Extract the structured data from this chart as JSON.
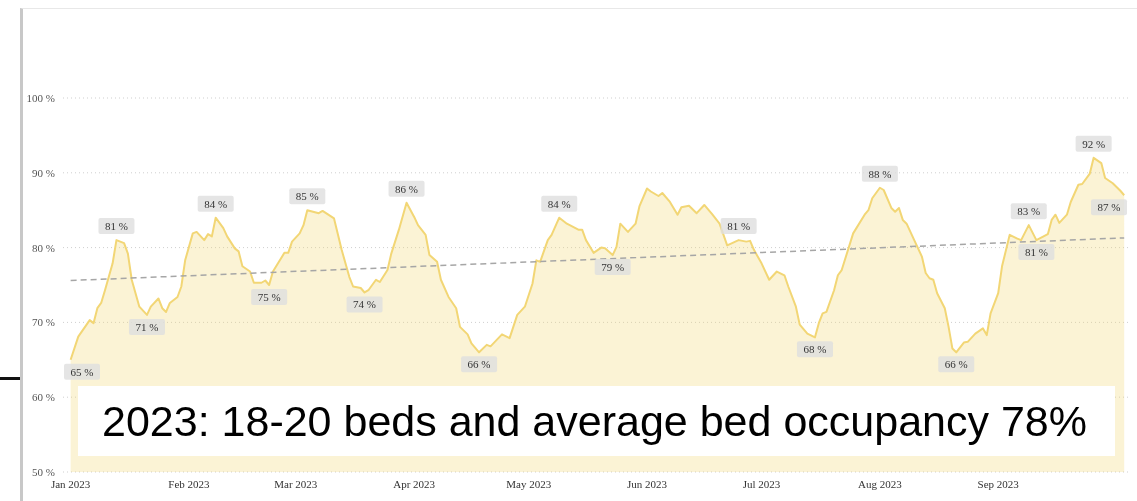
{
  "chart_data": {
    "type": "area",
    "annotations": [
      "2023: 18-20 beds and average bed occupancy 78%"
    ],
    "xlim": [
      "2022-12-30",
      "2023-10-05"
    ],
    "xticks": [
      {
        "value": "2023-01-01",
        "label": "Jan 2023"
      },
      {
        "value": "2023-02-01",
        "label": "Feb 2023"
      },
      {
        "value": "2023-03-01",
        "label": "Mar 2023"
      },
      {
        "value": "2023-04-01",
        "label": "Apr 2023"
      },
      {
        "value": "2023-05-01",
        "label": "May 2023"
      },
      {
        "value": "2023-06-01",
        "label": "Jun 2023"
      },
      {
        "value": "2023-07-01",
        "label": "Jul 2023"
      },
      {
        "value": "2023-08-01",
        "label": "Aug 2023"
      },
      {
        "value": "2023-09-01",
        "label": "Sep 2023"
      }
    ],
    "ylim": [
      50,
      100
    ],
    "yticks": [
      {
        "value": 50,
        "label": "50 %"
      },
      {
        "value": 60,
        "label": "60 %"
      },
      {
        "value": 70,
        "label": "70 %"
      },
      {
        "value": 80,
        "label": "80 %"
      },
      {
        "value": 90,
        "label": "90 %"
      },
      {
        "value": 100,
        "label": "100 %"
      }
    ],
    "grid": "y",
    "series": [
      {
        "color": "#f2d675",
        "x": [
          "2023-01-01",
          "2023-01-03",
          "2023-01-06",
          "2023-01-07",
          "2023-01-08",
          "2023-01-09",
          "2023-01-10",
          "2023-01-12",
          "2023-01-13",
          "2023-01-15",
          "2023-01-16",
          "2023-01-17",
          "2023-01-19",
          "2023-01-21",
          "2023-01-22",
          "2023-01-24",
          "2023-01-25",
          "2023-01-26",
          "2023-01-27",
          "2023-01-29",
          "2023-01-30",
          "2023-01-31",
          "2023-02-02",
          "2023-02-03",
          "2023-02-05",
          "2023-02-06",
          "2023-02-07",
          "2023-02-08",
          "2023-02-10",
          "2023-02-11",
          "2023-02-13",
          "2023-02-14",
          "2023-02-15",
          "2023-02-17",
          "2023-02-18",
          "2023-02-20",
          "2023-02-21",
          "2023-02-22",
          "2023-02-23",
          "2023-02-26",
          "2023-02-27",
          "2023-02-28",
          "2023-03-02",
          "2023-03-03",
          "2023-03-04",
          "2023-03-07",
          "2023-03-08",
          "2023-03-11",
          "2023-03-13",
          "2023-03-15",
          "2023-03-16",
          "2023-03-18",
          "2023-03-19",
          "2023-03-20",
          "2023-03-22",
          "2023-03-23",
          "2023-03-25",
          "2023-03-26",
          "2023-03-28",
          "2023-03-30",
          "2023-04-01",
          "2023-04-02",
          "2023-04-04",
          "2023-04-05",
          "2023-04-07",
          "2023-04-08",
          "2023-04-10",
          "2023-04-12",
          "2023-04-13",
          "2023-04-15",
          "2023-04-16",
          "2023-04-18",
          "2023-04-20",
          "2023-04-21",
          "2023-04-24",
          "2023-04-26",
          "2023-04-28",
          "2023-04-30",
          "2023-05-02",
          "2023-05-03",
          "2023-05-04",
          "2023-05-06",
          "2023-05-07",
          "2023-05-09",
          "2023-05-11",
          "2023-05-14",
          "2023-05-15",
          "2023-05-16",
          "2023-05-18",
          "2023-05-20",
          "2023-05-21",
          "2023-05-23",
          "2023-05-24",
          "2023-05-25",
          "2023-05-27",
          "2023-05-29",
          "2023-05-30",
          "2023-06-01",
          "2023-06-02",
          "2023-06-04",
          "2023-06-05",
          "2023-06-07",
          "2023-06-09",
          "2023-06-10",
          "2023-06-12",
          "2023-06-14",
          "2023-06-16",
          "2023-06-18",
          "2023-06-20",
          "2023-06-22",
          "2023-06-25",
          "2023-06-27",
          "2023-06-28",
          "2023-06-29",
          "2023-07-01",
          "2023-07-03",
          "2023-07-05",
          "2023-07-07",
          "2023-07-08",
          "2023-07-10",
          "2023-07-11",
          "2023-07-13",
          "2023-07-15",
          "2023-07-16",
          "2023-07-17",
          "2023-07-18",
          "2023-07-20",
          "2023-07-21",
          "2023-07-22",
          "2023-07-25",
          "2023-07-28",
          "2023-07-29",
          "2023-07-30",
          "2023-08-01",
          "2023-08-02",
          "2023-08-04",
          "2023-08-05",
          "2023-08-06",
          "2023-08-07",
          "2023-08-08",
          "2023-08-10",
          "2023-08-12",
          "2023-08-13",
          "2023-08-14",
          "2023-08-15",
          "2023-08-16",
          "2023-08-18",
          "2023-08-19",
          "2023-08-20",
          "2023-08-21",
          "2023-08-23",
          "2023-08-24",
          "2023-08-26",
          "2023-08-28",
          "2023-08-29",
          "2023-08-30",
          "2023-09-01",
          "2023-09-02",
          "2023-09-04",
          "2023-09-06",
          "2023-09-07",
          "2023-09-09",
          "2023-09-11",
          "2023-09-14",
          "2023-09-15",
          "2023-09-16",
          "2023-09-17",
          "2023-09-19",
          "2023-09-20",
          "2023-09-22",
          "2023-09-23",
          "2023-09-25",
          "2023-09-26",
          "2023-09-28",
          "2023-09-29",
          "2023-10-01",
          "2023-10-03",
          "2023-10-04"
        ],
        "values": [
          65,
          68.1,
          70.3,
          69.9,
          71.9,
          72.6,
          74.3,
          77.9,
          81,
          80.6,
          79.2,
          75.7,
          72.1,
          71,
          72.1,
          73.2,
          71.9,
          71.4,
          72.6,
          73.4,
          74.8,
          78.3,
          81.9,
          82.1,
          81.0,
          81.8,
          81.5,
          84,
          82.6,
          81.5,
          79.9,
          79.5,
          77.5,
          76.8,
          75.3,
          75.3,
          75.6,
          75,
          76.8,
          79.3,
          79.3,
          80.8,
          81.9,
          83.0,
          85,
          84.6,
          84.9,
          83.9,
          79.7,
          76.1,
          74.8,
          74.6,
          74,
          74.3,
          75.7,
          75.4,
          77.0,
          79.2,
          82.4,
          86,
          84.1,
          83.0,
          81.7,
          79.0,
          78.1,
          75.7,
          73.4,
          71.9,
          69.4,
          68.4,
          67.2,
          66,
          67.0,
          66.8,
          68.4,
          67.9,
          71.0,
          72.1,
          75.2,
          78.3,
          78.1,
          81.0,
          81.7,
          84,
          83.2,
          82.4,
          82.4,
          81.0,
          79.3,
          80.0,
          79.9,
          79,
          80.1,
          83.2,
          82.1,
          83.2,
          85.5,
          87.9,
          87.5,
          86.9,
          87.3,
          86.1,
          84.4,
          85.4,
          85.6,
          84.6,
          85.7,
          84.5,
          83.2,
          80.3,
          81,
          80.8,
          80.9,
          79.7,
          77.9,
          75.7,
          76.8,
          76.3,
          74.8,
          72.1,
          69.7,
          68.5,
          68,
          69.9,
          71.2,
          71.4,
          74.3,
          76.3,
          77.0,
          81.9,
          84.4,
          85.0,
          86.6,
          88,
          87.7,
          85.3,
          84.8,
          85.3,
          83.7,
          83.2,
          81.0,
          78.8,
          76.6,
          75.9,
          75.7,
          73.9,
          71.9,
          69.4,
          66.5,
          66,
          67.3,
          67.4,
          68.5,
          69.2,
          68.3,
          71.2,
          73.9,
          77.5,
          81.7,
          81.2,
          81.0,
          83,
          81,
          81.8,
          83.7,
          84.4,
          83.3,
          84.4,
          86.1,
          88.4,
          88.5,
          89.9,
          92,
          91.3,
          89.3,
          88.6,
          87.6,
          87
        ],
        "value_labels": [
          "65 %",
          null,
          null,
          null,
          null,
          null,
          null,
          null,
          "81 %",
          null,
          null,
          null,
          null,
          "71 %",
          null,
          null,
          null,
          null,
          null,
          null,
          null,
          null,
          null,
          null,
          null,
          null,
          null,
          "84 %",
          null,
          null,
          null,
          null,
          null,
          null,
          null,
          null,
          null,
          "75 %",
          null,
          null,
          null,
          null,
          null,
          null,
          "85 %",
          null,
          null,
          null,
          null,
          null,
          null,
          null,
          "74 %",
          null,
          null,
          null,
          null,
          null,
          null,
          "86 %",
          null,
          null,
          null,
          null,
          null,
          null,
          null,
          null,
          null,
          null,
          null,
          "66 %",
          null,
          null,
          null,
          null,
          null,
          null,
          null,
          null,
          null,
          null,
          null,
          "84 %",
          null,
          null,
          null,
          null,
          null,
          null,
          null,
          "79 %",
          null,
          null,
          null,
          null,
          null,
          null,
          null,
          null,
          null,
          null,
          null,
          null,
          null,
          null,
          null,
          null,
          null,
          null,
          "81 %",
          null,
          null,
          null,
          null,
          null,
          null,
          null,
          null,
          null,
          null,
          null,
          "68 %",
          null,
          null,
          null,
          null,
          null,
          null,
          null,
          null,
          null,
          null,
          "88 %",
          null,
          null,
          null,
          null,
          null,
          null,
          null,
          null,
          null,
          null,
          null,
          null,
          null,
          null,
          null,
          "66 %",
          null,
          null,
          null,
          null,
          null,
          null,
          null,
          null,
          null,
          null,
          null,
          "83 %",
          "81 %",
          null,
          null,
          null,
          null,
          null,
          null,
          null,
          null,
          null,
          "92 %",
          null,
          null,
          null,
          null,
          "87 %"
        ]
      },
      {
        "type": "line",
        "color": "#a6a6a6",
        "line_style": "dashed",
        "x": [
          "2023-01-01",
          "2023-10-04"
        ],
        "values": [
          75.6,
          81.3
        ]
      }
    ]
  }
}
